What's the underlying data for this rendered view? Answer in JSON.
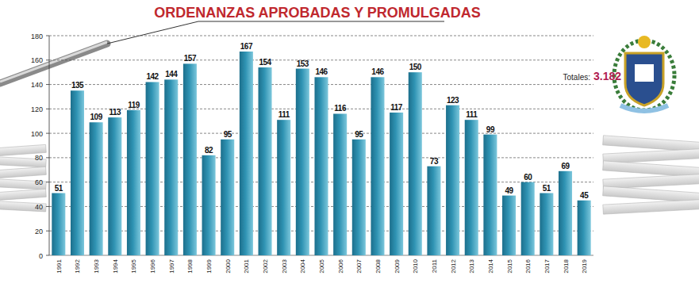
{
  "chart_data": {
    "type": "bar",
    "title": "ORDENANZAS APROBADAS Y PROMULGADAS",
    "annotations": [
      "Totales:",
      "3.182"
    ],
    "categories": [
      "1991",
      "1992",
      "1993",
      "1994",
      "1995",
      "1996",
      "1997",
      "1998",
      "1999",
      "2000",
      "2001",
      "2002",
      "2003",
      "2004",
      "2005",
      "2006",
      "2007",
      "2008",
      "2009",
      "2010",
      "2011",
      "2012",
      "2013",
      "2014",
      "2015",
      "2016",
      "2017",
      "2018",
      "2019"
    ],
    "values": [
      51,
      135,
      109,
      113,
      119,
      142,
      144,
      157,
      82,
      95,
      167,
      154,
      111,
      153,
      146,
      116,
      95,
      146,
      117,
      150,
      73,
      123,
      111,
      99,
      49,
      60,
      51,
      69,
      45
    ],
    "color": "#2f93b3",
    "ylim": [
      0,
      180
    ],
    "yticks": [
      0,
      20,
      40,
      60,
      80,
      100,
      120,
      140,
      160,
      180
    ],
    "grid": true,
    "data_labels": true
  }
}
